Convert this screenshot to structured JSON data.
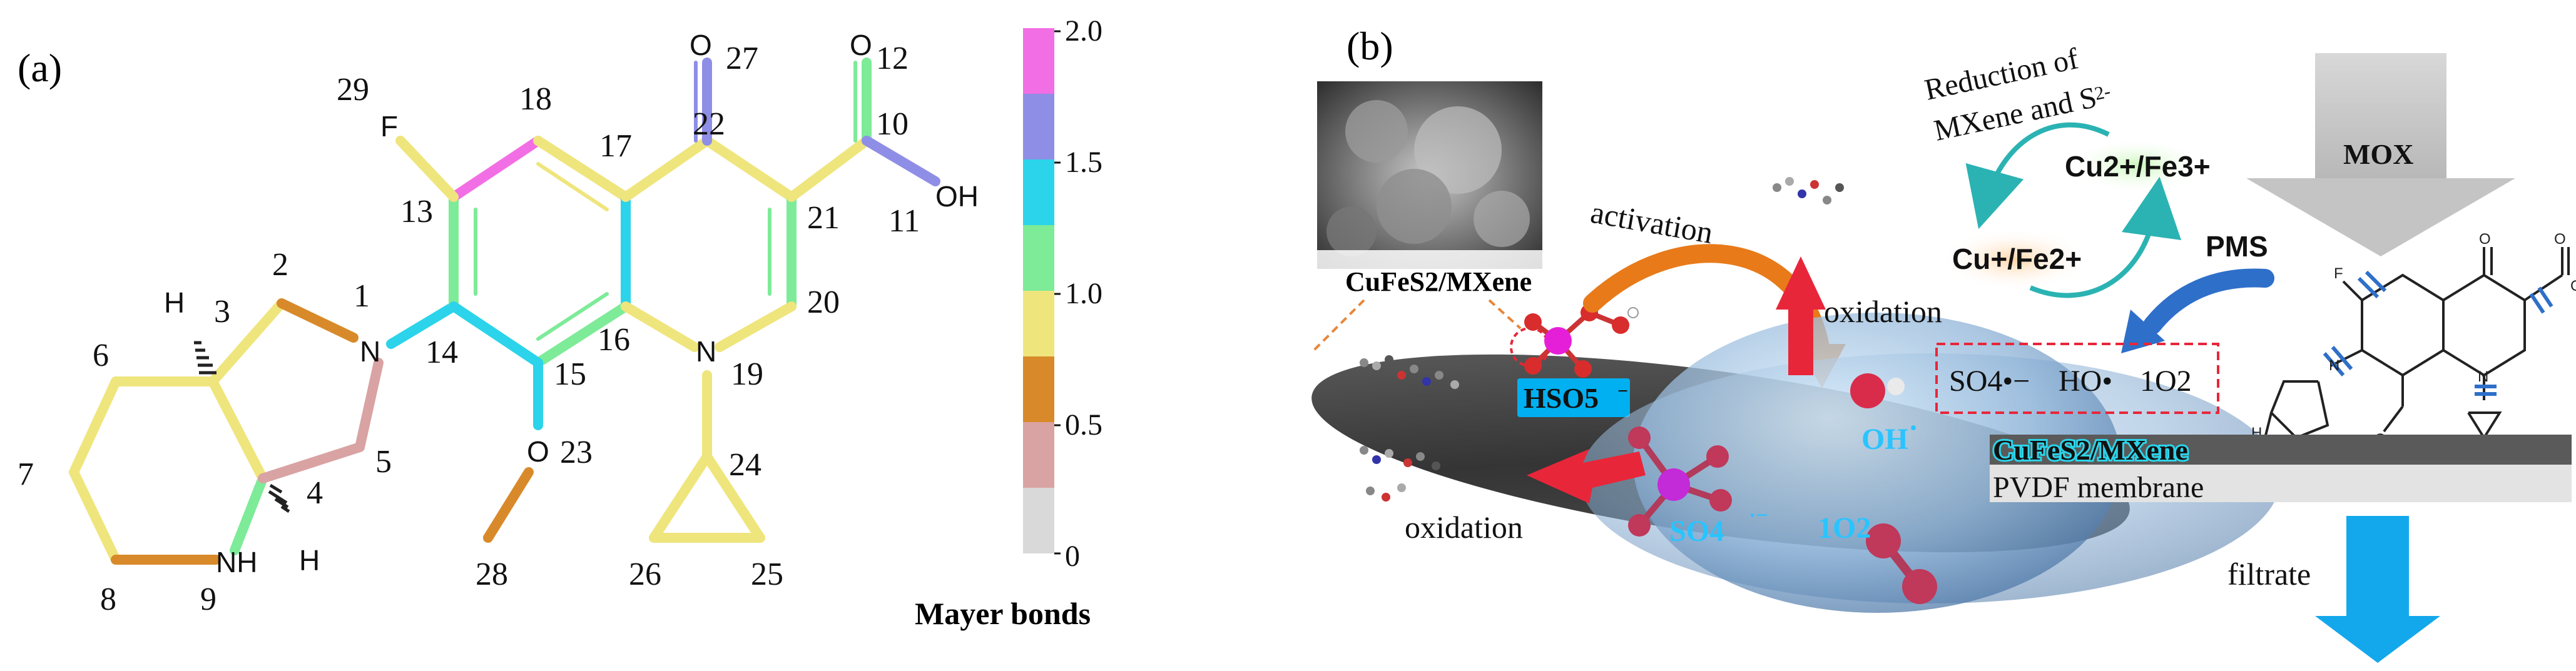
{
  "panel_a": {
    "label": "(a)",
    "atom_numbers": [
      "1",
      "2",
      "3",
      "4",
      "5",
      "6",
      "7",
      "8",
      "9",
      "10",
      "11",
      "12",
      "13",
      "14",
      "15",
      "16",
      "17",
      "18",
      "19",
      "20",
      "21",
      "22",
      "23",
      "24",
      "25",
      "26",
      "27",
      "28",
      "29"
    ],
    "atoms": {
      "F": "F",
      "N1": "N",
      "N19": "N",
      "NH": "NH",
      "O23": "O",
      "O27": "O",
      "O12": "O",
      "OH": "OH",
      "H3": "H",
      "H4": "H"
    },
    "legend": {
      "title": "Mayer bonds",
      "ticks": [
        "2.0",
        "1.5",
        "1.0",
        "0.5",
        "0"
      ],
      "colors": [
        "#f26ee4",
        "#8f8ee6",
        "#2bd4ea",
        "#7deb98",
        "#efe57d",
        "#d88a2a",
        "#d9a3a3",
        "#d9d9d9"
      ]
    }
  },
  "panel_b": {
    "label": "(b)",
    "catalyst_label": "CuFeS2/MXene",
    "hso5_label": "HSO5",
    "activation_label": "activation",
    "oxidation_top": "oxidation",
    "oxidation_bottom": "oxidation",
    "oh_label": "OH",
    "so4_label": "SO4",
    "singlet_o2_label": "1O2",
    "reduction_line1": "Reduction of",
    "reduction_line2": "MXene and S",
    "cu2_fe3": "Cu2+/Fe3+",
    "cu1_fe2": "Cu+/Fe2+",
    "pms": "PMS",
    "mox": "MOX",
    "radicals": [
      "SO4•−",
      "HO•",
      "1O2"
    ],
    "membrane_catalyst": "CuFeS2/MXene",
    "pvdf": "PVDF membrane",
    "filtrate": "filtrate",
    "colors": {
      "hso5_bg": "#00b0f0",
      "oh_color": "#29c4ff",
      "arrow_red": "#e8263a",
      "arrow_orange": "#e87a1a",
      "arrow_blue": "#2e6fc9",
      "filtrate_blue": "#13a8ec"
    }
  }
}
